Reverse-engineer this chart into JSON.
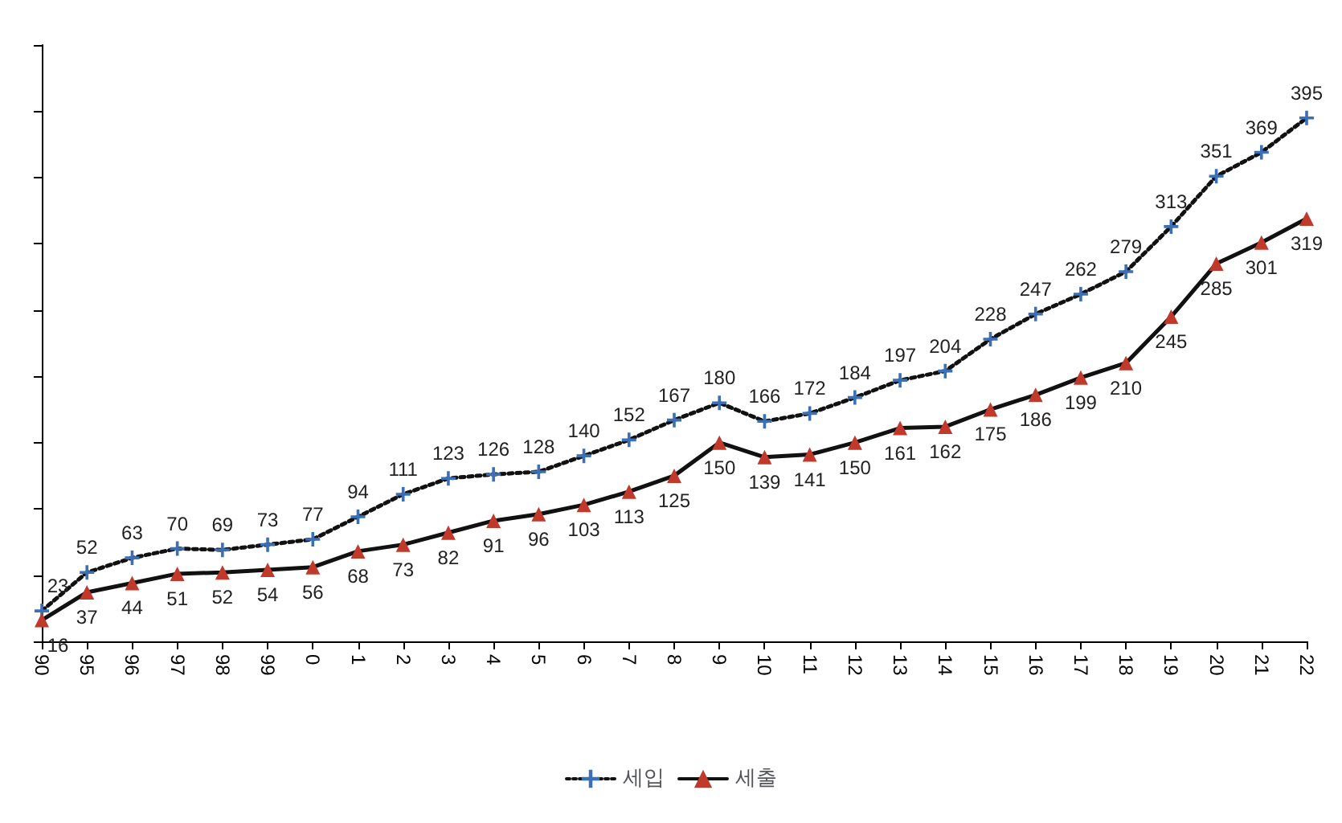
{
  "chart_data": {
    "type": "line",
    "categories": [
      "90",
      "95",
      "96",
      "97",
      "98",
      "99",
      "0",
      "1",
      "2",
      "3",
      "4",
      "5",
      "6",
      "7",
      "8",
      "9",
      "10",
      "11",
      "12",
      "13",
      "14",
      "15",
      "16",
      "17",
      "18",
      "19",
      "20",
      "21",
      "22"
    ],
    "series": [
      {
        "name": "세입",
        "color": "#3b6fb6",
        "line_style": "dotted",
        "marker": "cross",
        "values": [
          23,
          52,
          63,
          70,
          69,
          73,
          77,
          94,
          111,
          123,
          126,
          128,
          140,
          152,
          167,
          180,
          166,
          172,
          184,
          197,
          204,
          228,
          247,
          262,
          279,
          313,
          351,
          369,
          395
        ]
      },
      {
        "name": "세출",
        "color": "#c0392b",
        "line_style": "solid",
        "marker": "triangle",
        "values": [
          16,
          37,
          44,
          51,
          52,
          54,
          56,
          68,
          73,
          82,
          91,
          96,
          103,
          113,
          125,
          150,
          139,
          141,
          150,
          161,
          162,
          175,
          186,
          199,
          210,
          245,
          285,
          301,
          319
        ]
      }
    ],
    "ylim": [
      0,
      450
    ],
    "yticks": [
      {
        "value": 0,
        "label": null
      },
      {
        "value": 50,
        "label": null
      },
      {
        "value": 100,
        "label": null
      },
      {
        "value": 150,
        "label": null
      },
      {
        "value": 200,
        "label": null
      },
      {
        "value": 250,
        "label": null
      },
      {
        "value": 300,
        "label": null
      },
      {
        "value": 350,
        "label": null
      },
      {
        "value": 400,
        "label": null
      },
      {
        "value": 450,
        "label": null
      }
    ],
    "tick_labels": "x",
    "data_labels": true,
    "legend": "bottom",
    "grid": false
  }
}
